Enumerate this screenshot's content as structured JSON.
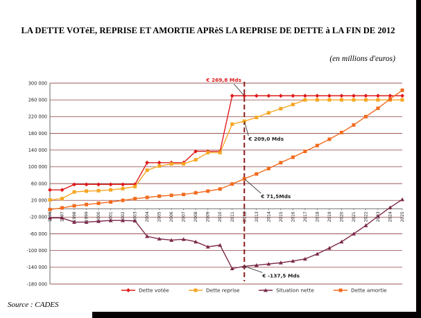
{
  "title": "LA DETTE VOTéE, REPRISE ET AMORTIE APRèS LA REPRISE DE DETTE à LA FIN DE 2012",
  "subtitle": "(en millions d'euros)",
  "source": "Source : CADES",
  "chart_data": {
    "type": "line",
    "x": [
      1996,
      1997,
      1998,
      1999,
      2000,
      2001,
      2002,
      2003,
      2004,
      2005,
      2006,
      2007,
      2008,
      2009,
      2010,
      2011,
      2012,
      2013,
      2014,
      2015,
      2016,
      2017,
      2018,
      2019,
      2020,
      2021,
      2022,
      2023,
      2024,
      2025
    ],
    "ylim": [
      -180000,
      300000
    ],
    "yticks": [
      300000,
      260000,
      220000,
      180000,
      140000,
      100000,
      60000,
      20000,
      -20000,
      -60000,
      -100000,
      -140000,
      -180000
    ],
    "ytick_labels": [
      "300 000",
      "260 000",
      "220 000",
      "180 000",
      "140 000",
      "100 000",
      "60 000",
      "20 000",
      "-20 000",
      "-60 000",
      "-100 000",
      "-140 000",
      "-180 000"
    ],
    "grid": true,
    "legend_position": "bottom",
    "series": [
      {
        "name": "Dette votée",
        "color": "#e01a1a",
        "marker": "diamond",
        "values": [
          45000,
          45000,
          58000,
          58000,
          58000,
          58000,
          58000,
          58000,
          110000,
          110000,
          110000,
          110000,
          137000,
          137000,
          137000,
          269800,
          269800,
          269800,
          269800,
          269800,
          269800,
          269800,
          269800,
          269800,
          269800,
          269800,
          269800,
          269800,
          269800,
          269800
        ]
      },
      {
        "name": "Dette reprise",
        "color": "#f5a623",
        "marker": "square",
        "values": [
          21000,
          24000,
          40000,
          42000,
          43000,
          45000,
          48000,
          53000,
          92000,
          102000,
          107000,
          107000,
          117000,
          134000,
          134000,
          202000,
          209000,
          218000,
          229000,
          239000,
          249000,
          260000,
          260000,
          260000,
          260000,
          260000,
          260000,
          260000,
          260000,
          260000
        ]
      },
      {
        "name": "Situation nette",
        "color": "#7b2a4a",
        "marker": "triangle",
        "values": [
          -22000,
          -22000,
          -32000,
          -32000,
          -30000,
          -28000,
          -28000,
          -29000,
          -66000,
          -72000,
          -75000,
          -73000,
          -79000,
          -91000,
          -87000,
          -143000,
          -137500,
          -135000,
          -132000,
          -129000,
          -125000,
          -120000,
          -108000,
          -94000,
          -79000,
          -60000,
          -40000,
          -18000,
          3000,
          22000
        ]
      },
      {
        "name": "Dette amortie",
        "color": "#f26b1d",
        "marker": "square",
        "values": [
          -2000,
          2000,
          7000,
          10000,
          13000,
          16000,
          20000,
          24000,
          27000,
          30000,
          32000,
          34000,
          38000,
          42000,
          47000,
          59000,
          71500,
          83000,
          96000,
          110000,
          123000,
          137000,
          151000,
          166000,
          182000,
          200000,
          220000,
          240000,
          262000,
          283000
        ]
      }
    ],
    "annotations": [
      {
        "text": "€ 269,8 Mds",
        "series": 0,
        "x": 2012,
        "color": "#e01a1a"
      },
      {
        "text": "€ 209,0 Mds",
        "series": 1,
        "x": 2012,
        "color": "#222222"
      },
      {
        "text": "€ 71,5Mds",
        "series": 3,
        "x": 2012,
        "color": "#222222"
      },
      {
        "text": "€ -137,5 Mds",
        "series": 2,
        "x": 2012,
        "color": "#222222"
      }
    ],
    "reference_line": {
      "x": 2012,
      "color": "#8b1a1a",
      "style": "dashed"
    }
  }
}
